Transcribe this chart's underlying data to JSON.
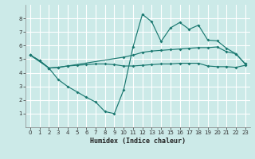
{
  "xlabel": "Humidex (Indice chaleur)",
  "bg_color": "#cceae8",
  "grid_color": "#ffffff",
  "line_color": "#1a7870",
  "xlim": [
    -0.5,
    23.5
  ],
  "ylim": [
    0,
    9
  ],
  "xticks": [
    0,
    1,
    2,
    3,
    4,
    5,
    6,
    7,
    8,
    9,
    10,
    11,
    12,
    13,
    14,
    15,
    16,
    17,
    18,
    19,
    20,
    21,
    22,
    23
  ],
  "yticks": [
    1,
    2,
    3,
    4,
    5,
    6,
    7,
    8
  ],
  "line1_x": [
    0,
    1,
    2,
    3,
    4,
    10,
    11,
    12,
    13,
    14,
    15,
    16,
    17,
    18,
    19,
    20,
    21,
    22,
    23
  ],
  "line1_y": [
    5.3,
    4.9,
    4.35,
    4.4,
    4.5,
    5.15,
    5.3,
    5.5,
    5.6,
    5.65,
    5.7,
    5.75,
    5.8,
    5.85,
    5.85,
    5.9,
    5.55,
    5.4,
    4.65
  ],
  "line2_x": [
    0,
    1,
    2,
    3,
    4,
    5,
    6,
    7,
    8,
    9,
    10,
    11,
    12,
    13,
    14,
    15,
    16,
    17,
    18,
    19,
    20,
    21,
    22,
    23
  ],
  "line2_y": [
    5.3,
    4.9,
    4.35,
    4.4,
    4.5,
    4.55,
    4.6,
    4.65,
    4.65,
    4.6,
    4.5,
    4.5,
    4.55,
    4.6,
    4.65,
    4.65,
    4.7,
    4.7,
    4.7,
    4.5,
    4.45,
    4.45,
    4.4,
    4.55
  ],
  "line3_x": [
    0,
    2,
    3,
    4,
    5,
    6,
    7,
    8,
    9,
    10,
    11,
    12,
    13,
    14,
    15,
    16,
    17,
    18,
    19,
    20,
    21,
    22,
    23
  ],
  "line3_y": [
    5.3,
    4.35,
    3.5,
    3.0,
    2.6,
    2.2,
    1.85,
    1.15,
    1.0,
    2.75,
    5.9,
    8.3,
    7.75,
    6.3,
    7.3,
    7.7,
    7.2,
    7.5,
    6.4,
    6.35,
    5.8,
    5.4,
    4.65
  ]
}
